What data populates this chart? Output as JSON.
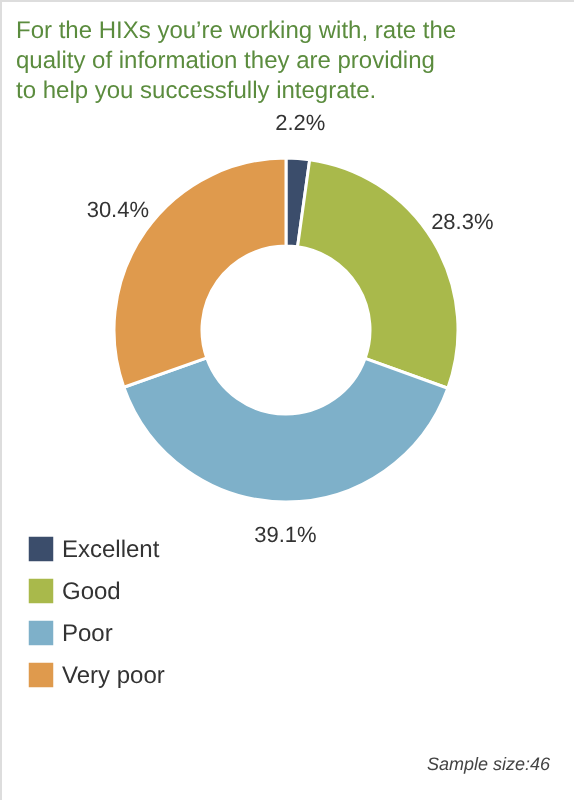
{
  "chart_data": {
    "type": "donut",
    "title": "For the HIXs you’re working with, rate the quality of information they are providing to help you successfully integrate.",
    "categories": [
      "Excellent",
      "Good",
      "Poor",
      "Very poor"
    ],
    "values": [
      2.2,
      28.3,
      39.1,
      30.4
    ],
    "value_labels": [
      "2.2%",
      "28.3%",
      "39.1%",
      "30.4%"
    ],
    "colors": [
      "#3b4d6b",
      "#a9b94b",
      "#7eb0c9",
      "#df9a4d"
    ],
    "legend": "bottom left",
    "annotations": [
      "Sample size:46"
    ]
  }
}
